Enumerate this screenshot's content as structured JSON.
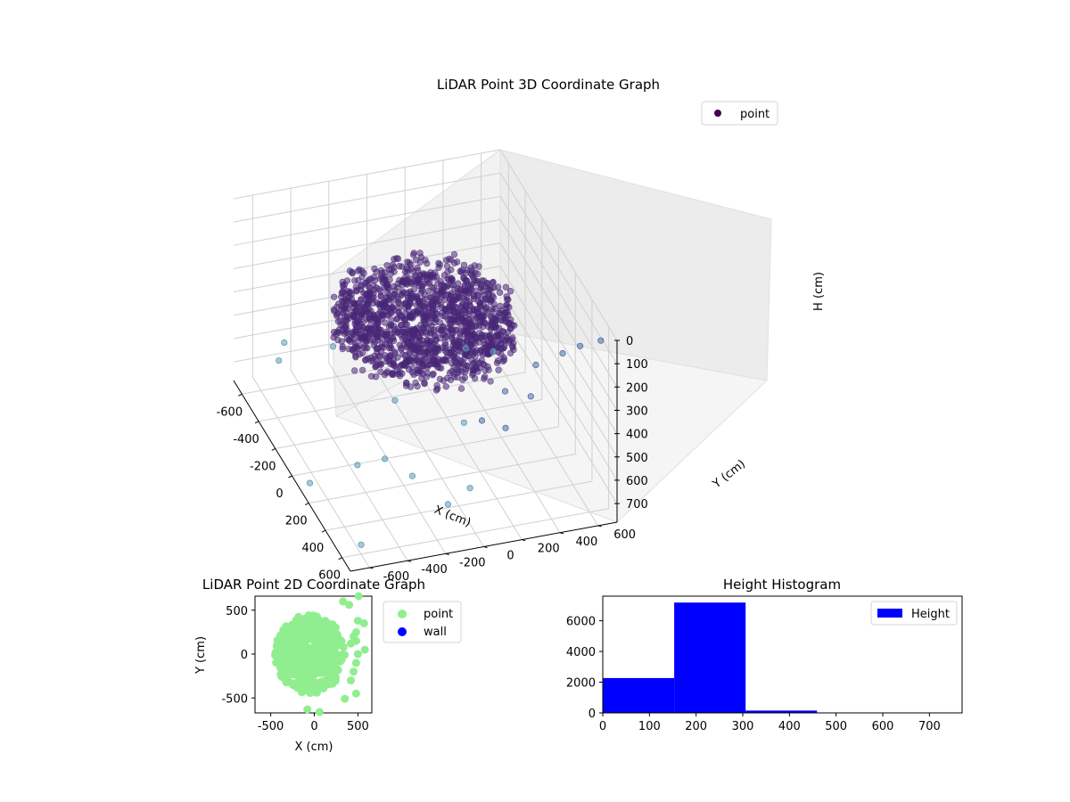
{
  "chart_data": [
    {
      "type": "scatter3d",
      "title": "LiDAR Point 3D Coordinate Graph",
      "xlabel": "X (cm)",
      "ylabel": "Y (cm)",
      "zlabel": "H (cm)",
      "xticks": [
        -600,
        -400,
        -200,
        0,
        200,
        400,
        600
      ],
      "yticks": [
        -600,
        -400,
        -200,
        0,
        200,
        400,
        600
      ],
      "zticks": [
        0,
        100,
        200,
        300,
        400,
        500,
        600,
        700
      ],
      "xlim": [
        -700,
        700
      ],
      "ylim": [
        -700,
        700
      ],
      "zlim": [
        0,
        780
      ],
      "z_inverted": true,
      "legend": {
        "entries": [
          "point"
        ],
        "placement": "top-right"
      },
      "colors": {
        "point_legend": "#440154",
        "cluster": "#482677",
        "outlier": "#4a6fa5",
        "outlier_far": "#5e9ab5"
      },
      "cluster": {
        "x_range": [
          -400,
          400
        ],
        "y_range": [
          -450,
          450
        ],
        "h_range": [
          150,
          300
        ]
      },
      "outliers": [
        {
          "x": 620,
          "y": 650,
          "h": 40
        },
        {
          "x": 600,
          "y": 550,
          "h": 60
        },
        {
          "x": 550,
          "y": 480,
          "h": 110
        },
        {
          "x": 640,
          "y": 300,
          "h": 80
        },
        {
          "x": 580,
          "y": 300,
          "h": 250
        },
        {
          "x": 500,
          "y": 200,
          "h": 260
        },
        {
          "x": 620,
          "y": 150,
          "h": 340
        },
        {
          "x": 450,
          "y": 100,
          "h": 400
        },
        {
          "x": 350,
          "y": 50,
          "h": 460
        },
        {
          "x": 650,
          "y": -50,
          "h": 550
        },
        {
          "x": 200,
          "y": -300,
          "h": 650
        },
        {
          "x": -550,
          "y": -500,
          "h": 560
        },
        {
          "x": -500,
          "y": -550,
          "h": 600
        },
        {
          "x": -650,
          "y": -200,
          "h": 680
        },
        {
          "x": -250,
          "y": -50,
          "h": 700
        },
        {
          "x": 100,
          "y": -400,
          "h": 720
        },
        {
          "x": 300,
          "y": -200,
          "h": 680
        },
        {
          "x": 500,
          "y": -100,
          "h": 700
        },
        {
          "x": -200,
          "y": 300,
          "h": 500
        },
        {
          "x": 600,
          "y": -600,
          "h": 740
        },
        {
          "x": 100,
          "y": -650,
          "h": 760
        },
        {
          "x": -100,
          "y": 400,
          "h": 470
        }
      ]
    },
    {
      "type": "scatter",
      "title": "LiDAR Point 2D Coordinate Graph",
      "xlabel": "X (cm)",
      "ylabel": "Y (cm)",
      "xticks": [
        -500,
        0,
        500
      ],
      "yticks": [
        -500,
        0,
        500
      ],
      "xlim": [
        -680,
        660
      ],
      "ylim": [
        -670,
        660
      ],
      "legend": {
        "entries": [
          "point",
          "wall"
        ],
        "placement": "outside-right"
      },
      "colors": {
        "point": "#90ee90",
        "wall": "#0000ff"
      },
      "cluster": {
        "x_range": [
          -450,
          350
        ],
        "y_range": [
          -450,
          450
        ]
      },
      "outliers": [
        {
          "x": 570,
          "y": 350
        },
        {
          "x": 500,
          "y": 380
        },
        {
          "x": 480,
          "y": 250
        },
        {
          "x": 450,
          "y": 200
        },
        {
          "x": 480,
          "y": 150
        },
        {
          "x": 420,
          "y": 120
        },
        {
          "x": 500,
          "y": 0
        },
        {
          "x": 580,
          "y": 50
        },
        {
          "x": 480,
          "y": -100
        },
        {
          "x": 480,
          "y": -450
        },
        {
          "x": 350,
          "y": -510
        },
        {
          "x": -80,
          "y": -630
        },
        {
          "x": 60,
          "y": -660
        },
        {
          "x": 400,
          "y": 560
        },
        {
          "x": 330,
          "y": 600
        },
        {
          "x": 510,
          "y": 660
        },
        {
          "x": 420,
          "y": -300
        },
        {
          "x": 450,
          "y": -200
        }
      ]
    },
    {
      "type": "bar",
      "title": "Height Histogram",
      "xlabel": "",
      "ylabel": "",
      "xticks": [
        0,
        100,
        200,
        300,
        400,
        500,
        600,
        700
      ],
      "yticks": [
        0,
        2000,
        4000,
        6000
      ],
      "xlim": [
        0,
        770
      ],
      "ylim": [
        0,
        7600
      ],
      "bin_edges": [
        0,
        153,
        306,
        459,
        612,
        765
      ],
      "counts": [
        2270,
        7180,
        150,
        10,
        5
      ],
      "legend": {
        "entries": [
          "Height"
        ],
        "placement": "top-right"
      },
      "colors": {
        "bar": "#0000ff"
      }
    }
  ]
}
